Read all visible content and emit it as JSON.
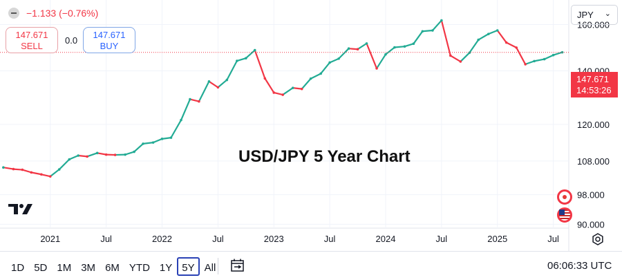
{
  "header": {
    "change": "−1.133 (−0.76%)",
    "sell": {
      "price": "147.671",
      "label": "SELL"
    },
    "buy": {
      "price": "147.671",
      "label": "BUY"
    },
    "spread": "0.0",
    "currency_select": "JPY"
  },
  "price_tag": {
    "price": "147.671",
    "countdown": "14:53:26"
  },
  "chart_data": {
    "type": "line",
    "title": "USD/JPY 5 Year Chart",
    "x": [
      2020.58,
      2020.67,
      2020.75,
      2020.83,
      2020.92,
      2021.0,
      2021.08,
      2021.17,
      2021.25,
      2021.33,
      2021.42,
      2021.5,
      2021.58,
      2021.67,
      2021.75,
      2021.83,
      2021.92,
      2022.0,
      2022.08,
      2022.17,
      2022.25,
      2022.33,
      2022.42,
      2022.5,
      2022.58,
      2022.67,
      2022.75,
      2022.83,
      2022.92,
      2023.0,
      2023.08,
      2023.17,
      2023.25,
      2023.33,
      2023.42,
      2023.5,
      2023.58,
      2023.67,
      2023.75,
      2023.83,
      2023.92,
      2024.0,
      2024.08,
      2024.17,
      2024.25,
      2024.33,
      2024.42,
      2024.5,
      2024.58,
      2024.67,
      2024.75,
      2024.83,
      2024.92,
      2025.0,
      2025.08,
      2025.17,
      2025.25,
      2025.33,
      2025.42,
      2025.5,
      2025.58
    ],
    "values": [
      106.0,
      105.5,
      105.3,
      104.5,
      103.9,
      103.3,
      105.4,
      108.5,
      109.7,
      109.4,
      110.5,
      110.0,
      109.9,
      110.0,
      110.9,
      113.5,
      113.9,
      115.1,
      115.5,
      121.5,
      129.0,
      128.2,
      135.8,
      133.5,
      136.4,
      144.1,
      145.2,
      148.6,
      137.0,
      131.5,
      130.7,
      133.3,
      132.9,
      136.9,
      138.9,
      143.4,
      145.0,
      149.3,
      149.0,
      151.5,
      141.0,
      146.8,
      149.8,
      150.2,
      151.4,
      156.9,
      157.3,
      161.9,
      146.3,
      143.8,
      147.5,
      153.1,
      155.7,
      157.3,
      151.9,
      149.7,
      142.7,
      144.0,
      144.8,
      146.5,
      147.7
    ],
    "last_value": 147.671,
    "y_ticks": [
      90.0,
      98.0,
      108.0,
      120.0,
      140.0,
      160.0
    ],
    "y_tick_labels": [
      "90.000",
      "98.000",
      "108.000",
      "120.000",
      "140.000",
      "160.000"
    ],
    "x_ticks": [
      2021.0,
      2021.5,
      2022.0,
      2022.5,
      2023.0,
      2023.5,
      2024.0,
      2024.5,
      2025.0,
      2025.5
    ],
    "x_tick_labels": [
      "2021",
      "Jul",
      "2022",
      "Jul",
      "2023",
      "Jul",
      "2024",
      "Jul",
      "2025",
      "Jul"
    ],
    "ylim": [
      89.0,
      165.0
    ],
    "xlim": [
      2020.55,
      2025.62
    ],
    "y_scale": "log",
    "colors": {
      "up": "#22ab94",
      "down": "#f23645",
      "last_line": "#f23645"
    }
  },
  "time_ranges": [
    "1D",
    "5D",
    "1M",
    "3M",
    "6M",
    "YTD",
    "1Y",
    "5Y",
    "All"
  ],
  "active_range": "5Y",
  "clock": "06:06:33 UTC",
  "icons": [
    "minus-icon",
    "chevron-down-icon",
    "tradingview-logo",
    "japan-flag-icon",
    "us-flag-icon",
    "settings-icon",
    "date-range-icon"
  ]
}
